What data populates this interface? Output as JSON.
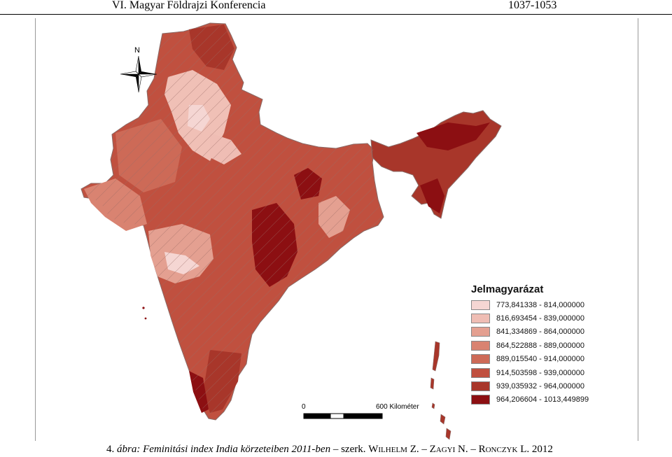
{
  "header": {
    "left": "VI. Magyar Földrajzi Konferencia",
    "right": "1037-1053"
  },
  "compass": {
    "label": "N"
  },
  "scale_bar": {
    "zero_label": "0",
    "max_label": "600 Kilométer"
  },
  "legend": {
    "title": "Jelmagyarázat",
    "classes": [
      {
        "label": "773,841338 - 814,000000",
        "color": "#f5d6d3"
      },
      {
        "label": "816,693454 - 839,000000",
        "color": "#efbdb4"
      },
      {
        "label": "841,334869 - 864,000000",
        "color": "#e4a091"
      },
      {
        "label": "864,522888 - 889,000000",
        "color": "#d98371"
      },
      {
        "label": "889,015540 - 914,000000",
        "color": "#cd6a57"
      },
      {
        "label": "914,503598 - 939,000000",
        "color": "#c0503f"
      },
      {
        "label": "939,035932 - 964,000000",
        "color": "#a8362a"
      },
      {
        "label": "964,206604 - 1013,449899",
        "color": "#8c0f12"
      }
    ]
  },
  "caption": {
    "figure_no": "4.",
    "title": "ábra: Feminitási index India körzeteiben 2011-ben",
    "sep1": " – szerk. ",
    "author1": "Wilhelm Z.",
    "sep2": " – ",
    "author2": "Zagyi N.",
    "sep3": " – ",
    "author3": "Ronczyk L.",
    "year": " 2012"
  }
}
